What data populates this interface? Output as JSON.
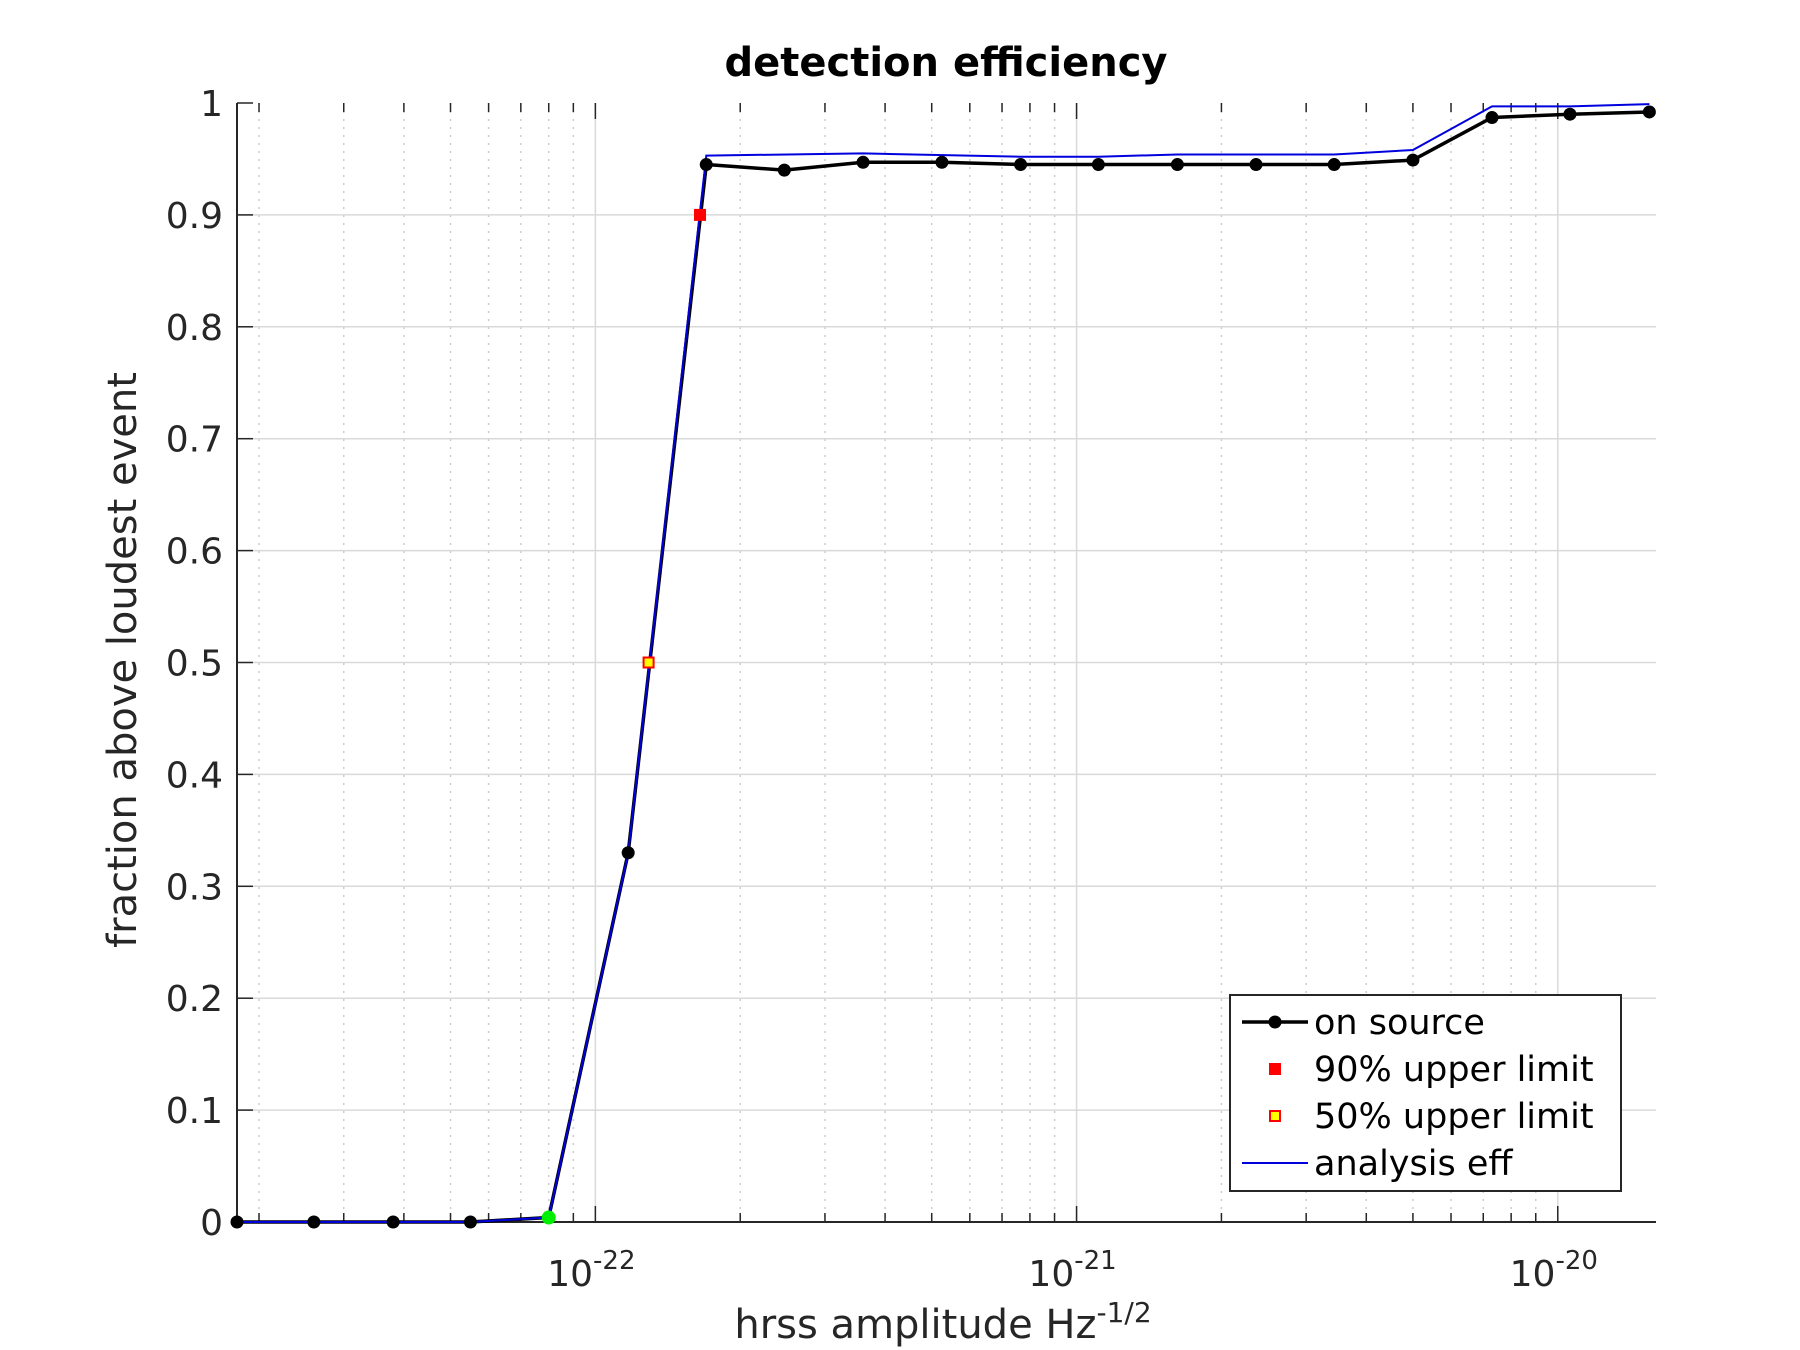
{
  "chart_data": {
    "type": "line",
    "title": "detection efficiency",
    "xlabel": "hrss amplitude Hz",
    "xlabel_exponent": "-1/2",
    "ylabel": "fraction above loudest event",
    "xscale": "log",
    "xlim": [
      1.8e-23,
      1.6e-20
    ],
    "ylim": [
      0,
      1
    ],
    "yticks": [
      "0",
      "0.1",
      "0.2",
      "0.3",
      "0.4",
      "0.5",
      "0.6",
      "0.7",
      "0.8",
      "0.9",
      "1"
    ],
    "xticks": [
      {
        "base": "10",
        "exponent": "-22",
        "value": 1e-22
      },
      {
        "base": "10",
        "exponent": "-21",
        "value": 1e-21
      },
      {
        "base": "10",
        "exponent": "-20",
        "value": 1e-20
      }
    ],
    "grid": true,
    "legend_position": "bottom-right",
    "series": [
      {
        "name": "on source",
        "color": "#000000",
        "marker": "circle",
        "points": [
          [
            1.8e-23,
            0
          ],
          [
            2.6e-23,
            0
          ],
          [
            3.8e-23,
            0
          ],
          [
            5.5e-23,
            0
          ],
          [
            8e-23,
            0.004
          ],
          [
            1.17e-22,
            0.33
          ],
          [
            1.7e-22,
            0.945
          ],
          [
            2.47e-22,
            0.94
          ],
          [
            3.6e-22,
            0.947
          ],
          [
            5.25e-22,
            0.947
          ],
          [
            7.65e-22,
            0.945
          ],
          [
            1.11e-21,
            0.945
          ],
          [
            1.62e-21,
            0.945
          ],
          [
            2.36e-21,
            0.945
          ],
          [
            3.43e-21,
            0.945
          ],
          [
            5e-21,
            0.949
          ],
          [
            7.3e-21,
            0.987
          ],
          [
            1.06e-20,
            0.99
          ],
          [
            1.55e-20,
            0.992
          ]
        ]
      },
      {
        "name": "analysis eff",
        "color": "#0000dd",
        "points": [
          [
            1.8e-23,
            0
          ],
          [
            5.5e-23,
            0
          ],
          [
            8e-23,
            0.004
          ],
          [
            1.17e-22,
            0.33
          ],
          [
            1.7e-22,
            0.953
          ],
          [
            3.6e-22,
            0.955
          ],
          [
            7.65e-22,
            0.952
          ],
          [
            1.11e-21,
            0.952
          ],
          [
            1.62e-21,
            0.954
          ],
          [
            3.43e-21,
            0.954
          ],
          [
            5e-21,
            0.958
          ],
          [
            7.3e-21,
            0.997
          ],
          [
            1.06e-20,
            0.997
          ],
          [
            1.55e-20,
            0.999
          ]
        ]
      }
    ],
    "markers": [
      {
        "name": "90% upper limit",
        "x": 1.65e-22,
        "y": 0.9,
        "fill": "#ff0000",
        "stroke": "#ff0000"
      },
      {
        "name": "50% upper limit",
        "x": 1.29e-22,
        "y": 0.5,
        "fill": "#ffff00",
        "stroke": "#ff0000"
      },
      {
        "name": "",
        "x": 8e-23,
        "y": 0.004,
        "fill": "#00ee00",
        "stroke": "#00ee00"
      }
    ],
    "legend": [
      {
        "label": "on source",
        "kind": "line-dot",
        "color": "#000000"
      },
      {
        "label": "90% upper limit",
        "kind": "square",
        "fill": "#ff0000",
        "stroke": "#ff0000"
      },
      {
        "label": "50% upper limit",
        "kind": "square",
        "fill": "#ffff00",
        "stroke": "#ff0000"
      },
      {
        "label": "analysis eff",
        "kind": "line",
        "color": "#0000dd"
      }
    ]
  }
}
